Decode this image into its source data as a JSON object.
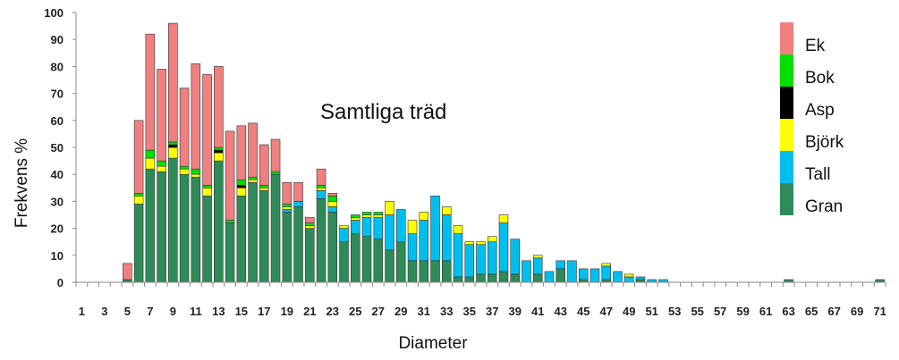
{
  "chart_data": {
    "type": "bar",
    "stacked": true,
    "title": "Samtliga träd",
    "xlabel": "Diameter",
    "ylabel": "Frekvens  %",
    "ylim": [
      0,
      100
    ],
    "yticks": [
      0,
      10,
      20,
      30,
      40,
      50,
      60,
      70,
      80,
      90,
      100
    ],
    "categories": [
      1,
      2,
      3,
      4,
      5,
      6,
      7,
      8,
      9,
      10,
      11,
      12,
      13,
      14,
      15,
      16,
      17,
      18,
      19,
      20,
      21,
      22,
      23,
      24,
      25,
      26,
      27,
      28,
      29,
      30,
      31,
      32,
      33,
      34,
      35,
      36,
      37,
      38,
      39,
      40,
      41,
      42,
      43,
      44,
      45,
      46,
      47,
      48,
      49,
      50,
      51,
      52,
      53,
      54,
      55,
      56,
      57,
      58,
      59,
      60,
      61,
      62,
      63,
      64,
      65,
      66,
      67,
      68,
      69,
      70,
      71
    ],
    "xtick_labels": [
      "1",
      "3",
      "5",
      "7",
      "9",
      "11",
      "13",
      "15",
      "17",
      "19",
      "21",
      "23",
      "25",
      "27",
      "29",
      "31",
      "33",
      "35",
      "37",
      "39",
      "41",
      "43",
      "45",
      "47",
      "49",
      "51",
      "53",
      "55",
      "57",
      "59",
      "61",
      "63",
      "65",
      "67",
      "69",
      "71"
    ],
    "grid": false,
    "legend_position": "right",
    "series": [
      {
        "name": "Gran",
        "color": "#2e8b57",
        "values": [
          0,
          0,
          0,
          0,
          1,
          29,
          42,
          41,
          46,
          40,
          39,
          32,
          45,
          22,
          32,
          37,
          34,
          40,
          26,
          28,
          20,
          31,
          26,
          15,
          18,
          17,
          16,
          12,
          15,
          8,
          8,
          8,
          8,
          2,
          2,
          3,
          3,
          4,
          3,
          0,
          3,
          0,
          5,
          0,
          1,
          0,
          1,
          0,
          0,
          1,
          0,
          0,
          0,
          0,
          0,
          0,
          0,
          0,
          0,
          0,
          0,
          0,
          1,
          0,
          0,
          0,
          0,
          0,
          0,
          0,
          1
        ]
      },
      {
        "name": "Tall",
        "color": "#00bfef",
        "values": [
          0,
          0,
          0,
          0,
          0,
          0,
          0,
          0,
          0,
          0,
          0,
          0,
          0,
          0,
          0,
          0,
          0,
          0,
          1,
          2,
          0,
          3,
          2,
          5,
          5,
          7,
          8,
          13,
          12,
          10,
          15,
          24,
          17,
          16,
          12,
          11,
          12,
          18,
          13,
          8,
          6,
          4,
          3,
          8,
          4,
          5,
          5,
          4,
          2,
          1,
          1,
          1,
          0,
          0,
          0,
          0,
          0,
          0,
          0,
          0,
          0,
          0,
          0,
          0,
          0,
          0,
          0,
          0,
          0,
          0,
          0
        ]
      },
      {
        "name": "Björk",
        "color": "#ffff00",
        "values": [
          0,
          0,
          0,
          0,
          0,
          3,
          4,
          2,
          4,
          2,
          1,
          3,
          3,
          0,
          3,
          1,
          1,
          0,
          1,
          0,
          1,
          1,
          2,
          1,
          1,
          1,
          1,
          5,
          0,
          5,
          3,
          0,
          3,
          3,
          1,
          1,
          2,
          3,
          0,
          0,
          1,
          0,
          0,
          0,
          0,
          0,
          1,
          0,
          1,
          0,
          0,
          0,
          0,
          0,
          0,
          0,
          0,
          0,
          0,
          0,
          0,
          0,
          0,
          0,
          0,
          0,
          0,
          0,
          0,
          0,
          0
        ]
      },
      {
        "name": "Asp",
        "color": "#000000",
        "values": [
          0,
          0,
          0,
          0,
          0,
          0,
          0,
          0,
          1,
          0,
          0,
          0,
          1,
          0,
          1,
          0,
          0,
          0,
          0,
          0,
          0,
          0,
          0,
          0,
          0,
          0,
          0,
          0,
          0,
          0,
          0,
          0,
          0,
          0,
          0,
          0,
          0,
          0,
          0,
          0,
          0,
          0,
          0,
          0,
          0,
          0,
          0,
          0,
          0,
          0,
          0,
          0,
          0,
          0,
          0,
          0,
          0,
          0,
          0,
          0,
          0,
          0,
          0,
          0,
          0,
          0,
          0,
          0,
          0,
          0,
          0
        ]
      },
      {
        "name": "Bok",
        "color": "#00e000",
        "values": [
          0,
          0,
          0,
          0,
          0,
          1,
          3,
          2,
          1,
          1,
          2,
          1,
          1,
          1,
          2,
          1,
          1,
          1,
          1,
          0,
          1,
          1,
          2,
          0,
          1,
          1,
          1,
          0,
          0,
          0,
          0,
          0,
          0,
          0,
          0,
          0,
          0,
          0,
          0,
          0,
          0,
          0,
          0,
          0,
          0,
          0,
          0,
          0,
          0,
          0,
          0,
          0,
          0,
          0,
          0,
          0,
          0,
          0,
          0,
          0,
          0,
          0,
          0,
          0,
          0,
          0,
          0,
          0,
          0,
          0,
          0
        ]
      },
      {
        "name": "Ek",
        "color": "#f08080",
        "values": [
          0,
          0,
          0,
          0,
          6,
          27,
          43,
          34,
          44,
          29,
          39,
          41,
          30,
          33,
          20,
          20,
          15,
          12,
          8,
          7,
          2,
          6,
          1,
          0,
          0,
          0,
          0,
          0,
          0,
          0,
          0,
          0,
          0,
          0,
          0,
          0,
          0,
          0,
          0,
          0,
          0,
          0,
          0,
          0,
          0,
          0,
          0,
          0,
          0,
          0,
          0,
          0,
          0,
          0,
          0,
          0,
          0,
          0,
          0,
          0,
          0,
          0,
          0,
          0,
          0,
          0,
          0,
          0,
          0,
          0,
          0
        ]
      }
    ],
    "legend_order": [
      "Ek",
      "Bok",
      "Asp",
      "Björk",
      "Tall",
      "Gran"
    ]
  }
}
